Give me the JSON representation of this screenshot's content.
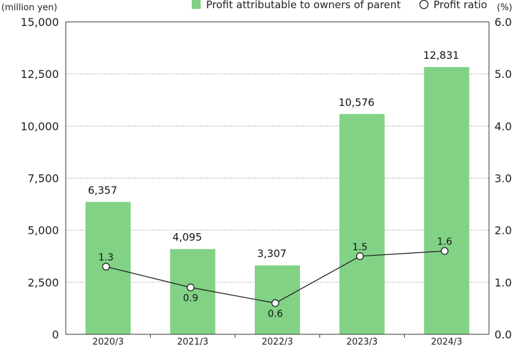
{
  "chart_data": {
    "type": "bar",
    "categories": [
      "2020/3",
      "2021/3",
      "2022/3",
      "2023/3",
      "2024/3"
    ],
    "series": [
      {
        "name": "Profit attributable to owners of parent",
        "kind": "bar",
        "axis": "left",
        "values": [
          6357,
          4095,
          3307,
          10576,
          12831
        ],
        "labels": [
          "6,357",
          "4,095",
          "3,307",
          "10,576",
          "12,831"
        ],
        "color": "#82d286"
      },
      {
        "name": "Profit ratio",
        "kind": "line",
        "axis": "right",
        "values": [
          1.3,
          0.9,
          0.6,
          1.5,
          1.6
        ],
        "labels": [
          "1.3",
          "0.9",
          "0.6",
          "1.5",
          "1.6"
        ],
        "color": "#222222"
      }
    ],
    "left_axis": {
      "unit": "(million yen)",
      "ylim": [
        0,
        15000
      ],
      "ticks": [
        0,
        2500,
        5000,
        7500,
        10000,
        12500,
        15000
      ],
      "tick_labels": [
        "0",
        "2,500",
        "5,000",
        "7,500",
        "10,000",
        "12,500",
        "15,000"
      ]
    },
    "right_axis": {
      "unit": "(%)",
      "ylim": [
        0,
        6
      ],
      "ticks": [
        0,
        1,
        2,
        3,
        4,
        5,
        6
      ],
      "tick_labels": [
        "0.0",
        "1.0",
        "2.0",
        "3.0",
        "4.0",
        "5.0",
        "6.0"
      ]
    },
    "grid": "horizontal dotted",
    "legend": "top-right"
  }
}
